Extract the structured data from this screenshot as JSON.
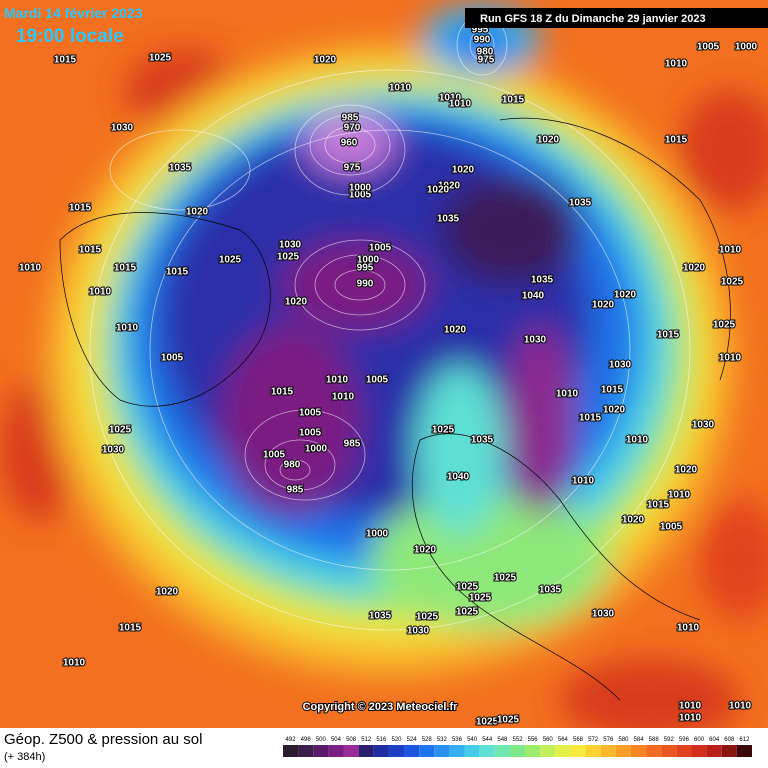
{
  "header": {
    "date": "Mardi 14 février 2023",
    "time": "19:00 locale",
    "run": "Run GFS 18 Z du Dimanche 29 janvier 2023"
  },
  "footer": {
    "title": "Géop. Z500 & pression au sol",
    "lead": "(+ 384h)",
    "copyright": "Copyright © 2023 Meteociel.fr"
  },
  "legend": {
    "values": [
      492,
      496,
      500,
      504,
      508,
      512,
      516,
      520,
      524,
      528,
      532,
      536,
      540,
      544,
      548,
      552,
      556,
      560,
      564,
      568,
      572,
      576,
      580,
      584,
      588,
      592,
      596,
      600,
      604,
      608,
      612
    ],
    "colors": [
      "#2b1b2e",
      "#3b1e4a",
      "#5a1b6a",
      "#7a1f82",
      "#992a98",
      "#2b1e6e",
      "#1f2ea0",
      "#1d3fc4",
      "#1b56e0",
      "#1f73f0",
      "#2a90f2",
      "#35b0f0",
      "#44cdea",
      "#5fe0d4",
      "#6fe8b0",
      "#7fe88a",
      "#9eec6c",
      "#c2ef5a",
      "#e2f04a",
      "#f7ea3c",
      "#fbd232",
      "#fbb82b",
      "#f99e26",
      "#f68524",
      "#f26c22",
      "#ec5620",
      "#e2421e",
      "#d2301c",
      "#b82018",
      "#8a1612",
      "#3a0a0a"
    ]
  },
  "isobar_labels": [
    "1015",
    "1025",
    "1020",
    "1010",
    "1030",
    "1035",
    "1015",
    "1020",
    "1015",
    "1010",
    "1015",
    "1015",
    "1025",
    "1030",
    "1025",
    "1020",
    "1005",
    "1000",
    "995",
    "990",
    "1010",
    "1010",
    "1005",
    "1015",
    "1010",
    "1010",
    "1005",
    "1005",
    "1005",
    "1000",
    "985",
    "1005",
    "980",
    "985",
    "1025",
    "1030",
    "1025",
    "1035",
    "1040",
    "1000",
    "1020",
    "1020",
    "1015",
    "1010",
    "1035",
    "1030",
    "1025",
    "1025",
    "1025",
    "1025",
    "1025",
    "1035",
    "1030",
    "1020",
    "1010",
    "1015",
    "1005",
    "1010",
    "1030",
    "1020",
    "1010",
    "1015",
    "1020",
    "1025",
    "1025",
    "1020",
    "1020",
    "1030",
    "1015",
    "1020",
    "1015",
    "1010",
    "1010",
    "1030",
    "1035",
    "1040",
    "1035",
    "1020",
    "1015",
    "1010",
    "1005",
    "1000",
    "1015",
    "1010",
    "1010",
    "1020",
    "1020",
    "1020",
    "1035",
    "1020",
    "985",
    "970",
    "960",
    "975",
    "1005",
    "1000",
    "995",
    "990",
    "980",
    "975",
    "1010",
    "1010",
    "1010",
    "1025",
    "1025",
    "1010",
    "1010"
  ]
}
